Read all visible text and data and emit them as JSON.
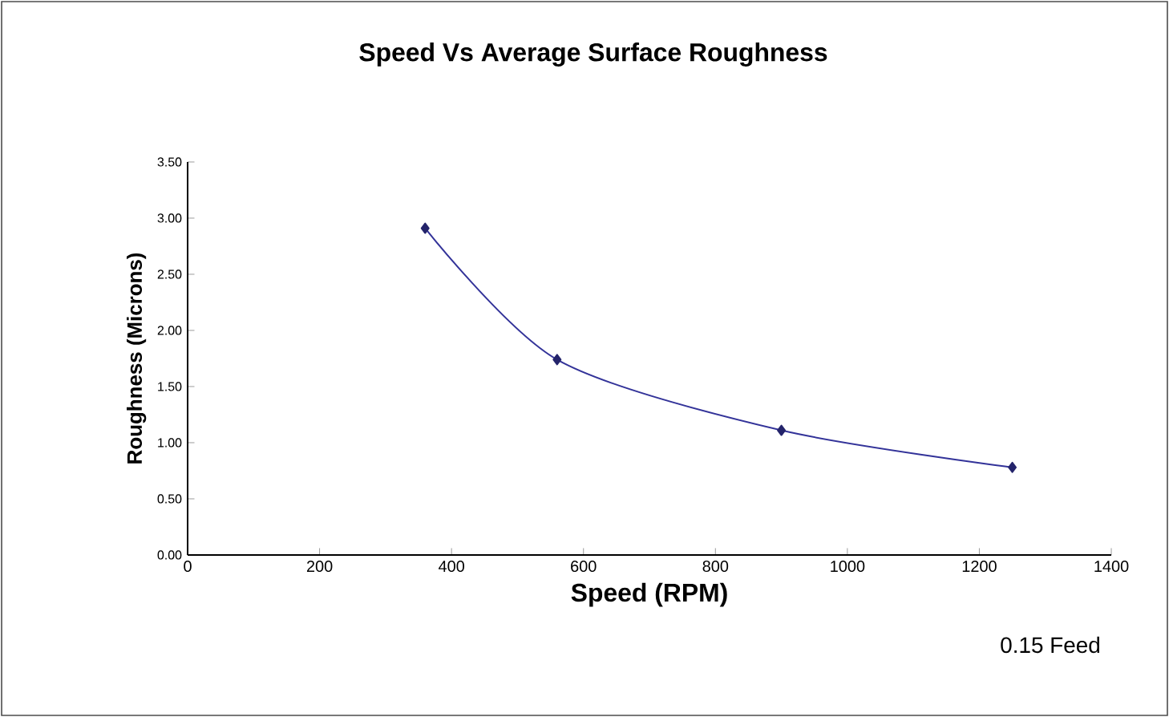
{
  "chart_data": {
    "type": "line",
    "title": "Speed Vs Average Surface Roughness",
    "xlabel": "Speed (RPM)",
    "ylabel": "Roughness (Microns)",
    "annotations": [
      "0.15 Feed"
    ],
    "x": [
      360,
      560,
      900,
      1250
    ],
    "series": [
      {
        "color": "#333399",
        "values": [
          2.91,
          1.74,
          1.11,
          0.78
        ]
      }
    ],
    "xlim": [
      0,
      1400
    ],
    "xticks": [
      0,
      200,
      400,
      600,
      800,
      1000,
      1200,
      1400
    ],
    "ylim": [
      0,
      3.5
    ],
    "yticks": [
      {
        "value": 0,
        "label": "0.00"
      },
      {
        "value": 0.5,
        "label": "0.50"
      },
      {
        "value": 1,
        "label": "1.00"
      },
      {
        "value": 1.5,
        "label": "1.50"
      },
      {
        "value": 2,
        "label": "2.00"
      },
      {
        "value": 2.5,
        "label": "2.50"
      },
      {
        "value": 3,
        "label": "3.00"
      },
      {
        "value": 3.5,
        "label": "3.50"
      }
    ],
    "marker": "diamond",
    "line_style": "solid",
    "grid": false
  }
}
